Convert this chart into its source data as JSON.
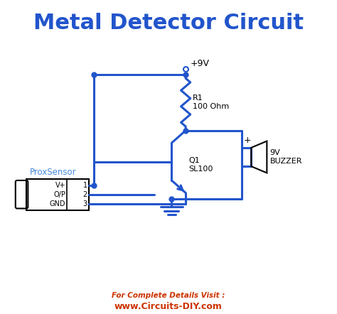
{
  "title": "Metal Detector Circuit",
  "title_color": "#2255cc",
  "title_fontsize": 22,
  "circuit_color": "#2255cc",
  "line_width": 2.2,
  "bg_color": "#ffffff",
  "footer_line1": "For Complete Details Visit :",
  "footer_line2": "www.Circuits-DIY.com",
  "footer_color": "#cc3300",
  "sensor_label": "ProxSensor",
  "sensor_label_color": "#4488dd",
  "transistor_label": "Q1\nSL100",
  "resistor_label": "R1\n100 Ohm",
  "buzzer_label": "9V\nBUZZER",
  "supply_label": "+9V",
  "gnd_symbol": true
}
